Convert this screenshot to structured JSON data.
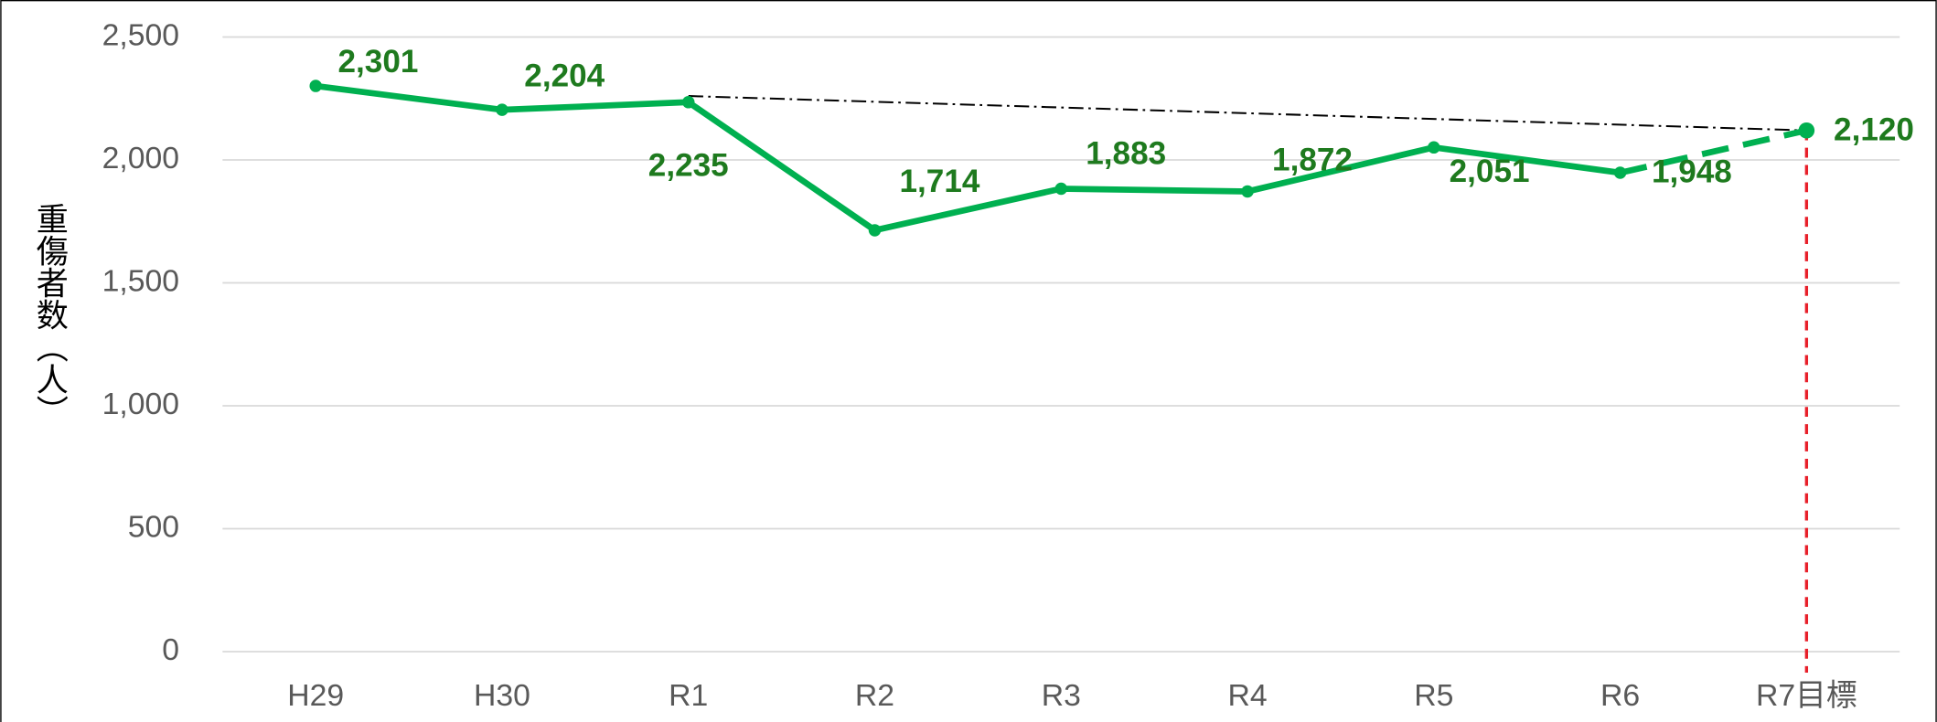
{
  "chart_data": {
    "type": "line",
    "y_label": "重傷者数（人）",
    "categories": [
      "H29",
      "H30",
      "R1",
      "R2",
      "R3",
      "R4",
      "R5",
      "R6",
      "R7目標"
    ],
    "series": [
      {
        "name": "重傷者数",
        "color": "#00b050",
        "values": [
          2301,
          2204,
          2235,
          1714,
          1883,
          1872,
          2051,
          1948,
          2120
        ],
        "value_labels": [
          "2,301",
          "2,204",
          "2,235",
          "1,714",
          "1,883",
          "1,872",
          "2,051",
          "1,948",
          "2,120"
        ]
      }
    ],
    "ylim": [
      0,
      2500
    ],
    "yticks": [
      0,
      500,
      {
        "value": 1000,
        "label": "1,000"
      },
      {
        "value": 1500,
        "label": "1,500"
      },
      {
        "value": 2000,
        "label": "2,000"
      },
      {
        "value": 2500,
        "label": "2,500"
      }
    ],
    "grid": true
  }
}
